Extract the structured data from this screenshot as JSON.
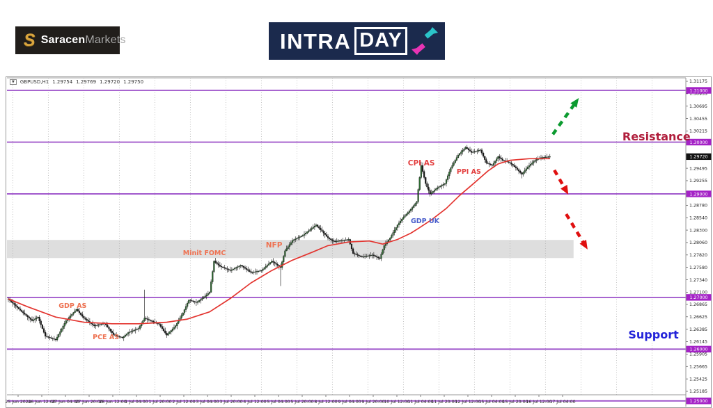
{
  "header": {
    "saracen_logo": {
      "icon": "S",
      "bold": "Saracen",
      "light": "Markets",
      "bg": "#211e1b",
      "gold": "#d9a53f"
    },
    "intraday_logo": {
      "part1": "INTRA",
      "part2": "DAY",
      "bg": "#1b2a4d",
      "arrow_up_color": "#2bc4c9",
      "arrow_down_color": "#e834b4"
    }
  },
  "chart_data": {
    "type": "candlestick",
    "symbol": "GBPUSD",
    "timeframe": "H1",
    "info_bar": {
      "symbol": "GBPUSD,H1",
      "open": "1.29754",
      "high": "1.29769",
      "low": "1.29720",
      "close": "1.29750"
    },
    "current_price": {
      "label": "1.29720",
      "price": 1.2972
    },
    "colors": {
      "up_candle": "#2f6d33",
      "down_candle": "#191919",
      "wick": "#111111",
      "ma_line": "#e3342f",
      "level_line": "#9b4fc9",
      "level_box": "#a422c6",
      "current_price_box": "#141414",
      "grid": "#b5b5b5",
      "zone_fill": "#dedede",
      "bull_arrow": "#0c9b30",
      "bear_arrow": "#e01010",
      "axis_text": "#222222",
      "border": "#9a9a9a"
    },
    "y_axis_ticks": [
      "1.31175",
      "1.30935",
      "1.30695",
      "1.30455",
      "1.30215",
      "1.29495",
      "1.29255",
      "1.28780",
      "1.28540",
      "1.28300",
      "1.28060",
      "1.27820",
      "1.27580",
      "1.27340",
      "1.27100",
      "1.26865",
      "1.26625",
      "1.26385",
      "1.26145",
      "1.25905",
      "1.25665",
      "1.25425",
      "1.25185"
    ],
    "level_lines": [
      {
        "label": "1.31000",
        "price": 1.31
      },
      {
        "label": "1.30000",
        "price": 1.3
      },
      {
        "label": "1.29000",
        "price": 1.29
      },
      {
        "label": "1.27000",
        "price": 1.27
      },
      {
        "label": "1.26000",
        "price": 1.26
      },
      {
        "label": "1.25000",
        "price": 1.25
      }
    ],
    "x_axis_labels": [
      "25 Jun 2024",
      "26 Jun 12:00",
      "27 Jun 04:00",
      "27 Jun 20:00",
      "28 Jun 12:00",
      "1 Jul 04:00",
      "1 Jul 20:00",
      "2 Jul 12:00",
      "3 Jul 04:00",
      "3 Jul 20:00",
      "4 Jul 12:00",
      "5 Jul 04:00",
      "5 Jul 20:00",
      "8 Jul 12:00",
      "9 Jul 04:00",
      "9 Jul 20:00",
      "10 Jul 12:00",
      "11 Jul 04:00",
      "11 Jul 20:00",
      "12 Jul 12:00",
      "15 Jul 04:00",
      "15 Jul 20:00",
      "16 Jul 12:00",
      "17 Jul 04:00"
    ],
    "bars_total": 367,
    "price_path": [
      [
        0,
        1.2697
      ],
      [
        8,
        1.2675
      ],
      [
        16,
        1.2655
      ],
      [
        20,
        1.2662
      ],
      [
        25,
        1.2625
      ],
      [
        32,
        1.2618
      ],
      [
        39,
        1.2655
      ],
      [
        46,
        1.2677
      ],
      [
        51,
        1.266
      ],
      [
        58,
        1.2645
      ],
      [
        65,
        1.265
      ],
      [
        71,
        1.2628
      ],
      [
        77,
        1.2622
      ],
      [
        81,
        1.2632
      ],
      [
        88,
        1.264
      ],
      [
        92,
        1.266
      ],
      [
        96,
        1.2655
      ],
      [
        102,
        1.2648
      ],
      [
        107,
        1.2627
      ],
      [
        113,
        1.2645
      ],
      [
        118,
        1.267
      ],
      [
        122,
        1.2695
      ],
      [
        127,
        1.269
      ],
      [
        132,
        1.27
      ],
      [
        136,
        1.271
      ],
      [
        139,
        1.277
      ],
      [
        143,
        1.276
      ],
      [
        150,
        1.2752
      ],
      [
        157,
        1.2762
      ],
      [
        164,
        1.2748
      ],
      [
        171,
        1.2752
      ],
      [
        178,
        1.277
      ],
      [
        184,
        1.2758
      ],
      [
        187,
        1.279
      ],
      [
        192,
        1.281
      ],
      [
        199,
        1.282
      ],
      [
        208,
        1.284
      ],
      [
        216,
        1.2815
      ],
      [
        220,
        1.2808
      ],
      [
        230,
        1.2812
      ],
      [
        233,
        1.2785
      ],
      [
        239,
        1.2778
      ],
      [
        246,
        1.2782
      ],
      [
        251,
        1.2775
      ],
      [
        254,
        1.28
      ],
      [
        258,
        1.2815
      ],
      [
        263,
        1.284
      ],
      [
        267,
        1.2855
      ],
      [
        272,
        1.287
      ],
      [
        276,
        1.2885
      ],
      [
        279,
        1.2955
      ],
      [
        282,
        1.292
      ],
      [
        285,
        1.29
      ],
      [
        290,
        1.2912
      ],
      [
        295,
        1.292
      ],
      [
        299,
        1.295
      ],
      [
        304,
        1.2975
      ],
      [
        309,
        1.299
      ],
      [
        313,
        1.298
      ],
      [
        319,
        1.2985
      ],
      [
        323,
        1.296
      ],
      [
        327,
        1.2955
      ],
      [
        331,
        1.2972
      ],
      [
        334,
        1.2965
      ],
      [
        339,
        1.296
      ],
      [
        343,
        1.295
      ],
      [
        347,
        1.2938
      ],
      [
        351,
        1.2952
      ],
      [
        356,
        1.2965
      ],
      [
        360,
        1.297
      ],
      [
        366,
        1.2972
      ]
    ],
    "spikes": [
      {
        "bar": 92,
        "high": 1.2715
      },
      {
        "bar": 184,
        "low": 1.2722
      },
      {
        "bar": 279,
        "high": 1.2962
      },
      {
        "bar": 347,
        "low": 1.293
      }
    ],
    "ma_path": [
      [
        0,
        1.2697
      ],
      [
        13,
        1.2682
      ],
      [
        32,
        1.2662
      ],
      [
        51,
        1.2652
      ],
      [
        70,
        1.2649
      ],
      [
        88,
        1.2649
      ],
      [
        107,
        1.2652
      ],
      [
        121,
        1.2658
      ],
      [
        136,
        1.2672
      ],
      [
        150,
        1.2698
      ],
      [
        164,
        1.2728
      ],
      [
        178,
        1.2752
      ],
      [
        192,
        1.2772
      ],
      [
        206,
        1.2788
      ],
      [
        216,
        1.28
      ],
      [
        230,
        1.2807
      ],
      [
        244,
        1.2809
      ],
      [
        253,
        1.2803
      ],
      [
        263,
        1.2812
      ],
      [
        272,
        1.2824
      ],
      [
        277,
        1.2833
      ],
      [
        286,
        1.285
      ],
      [
        296,
        1.2872
      ],
      [
        305,
        1.2897
      ],
      [
        314,
        1.2919
      ],
      [
        324,
        1.2944
      ],
      [
        331,
        1.2958
      ],
      [
        339,
        1.2965
      ],
      [
        352,
        1.2968
      ],
      [
        366,
        1.2968
      ]
    ],
    "consolidation_zone": {
      "price_top": 1.2811,
      "price_bottom": 1.2776,
      "bar_start": 0,
      "bar_end": 382
    },
    "arrows": [
      {
        "name": "bullish-projection-arrow",
        "color": "#0c9b30",
        "from": [
          368,
          1.3015
        ],
        "to": [
          385,
          1.3083
        ]
      },
      {
        "name": "bearish-projection-arrow-1",
        "color": "#e01010",
        "from": [
          369,
          1.2946
        ],
        "to": [
          378,
          1.2901
        ]
      },
      {
        "name": "bearish-projection-arrow-2",
        "color": "#e01010",
        "from": [
          377,
          1.2861
        ],
        "to": [
          391,
          1.2795
        ]
      }
    ],
    "annotations": [
      {
        "name": "gdp-as",
        "text": "GDP AS",
        "bar": 34,
        "price": 1.2689,
        "color": "#ee7252",
        "size": 9.5,
        "weight": 700
      },
      {
        "name": "pce-as",
        "text": "PCE AS",
        "bar": 57,
        "price": 1.2629,
        "color": "#ee7252",
        "size": 9.5,
        "weight": 700
      },
      {
        "name": "minit-fomc",
        "text": "Minit FOMC",
        "bar": 118,
        "price": 1.2791,
        "color": "#ee7252",
        "size": 9.5,
        "weight": 700
      },
      {
        "name": "nfp",
        "text": "NFP",
        "bar": 174,
        "price": 1.2807,
        "color": "#ee7252",
        "size": 10.5,
        "weight": 700
      },
      {
        "name": "gdp-uk",
        "text": "GDP UK",
        "bar": 272,
        "price": 1.2853,
        "color": "#4a5ecb",
        "size": 9.5,
        "weight": 700
      },
      {
        "name": "cpi-as",
        "text": "CPI AS",
        "bar": 270,
        "price": 1.2966,
        "color": "#e33f3f",
        "size": 10.5,
        "weight": 700
      },
      {
        "name": "ppi-as",
        "text": "PPI AS",
        "bar": 303,
        "price": 1.2948,
        "color": "#e33f3f",
        "size": 9.5,
        "weight": 700
      },
      {
        "name": "resistance",
        "text": "Resistance",
        "bar": 415,
        "price": 1.3021,
        "color": "#b01e3c",
        "size": 16,
        "weight": 800
      },
      {
        "name": "support",
        "text": "Support",
        "bar": 419,
        "price": 1.2638,
        "color": "#2323d9",
        "size": 16,
        "weight": 800
      }
    ]
  }
}
